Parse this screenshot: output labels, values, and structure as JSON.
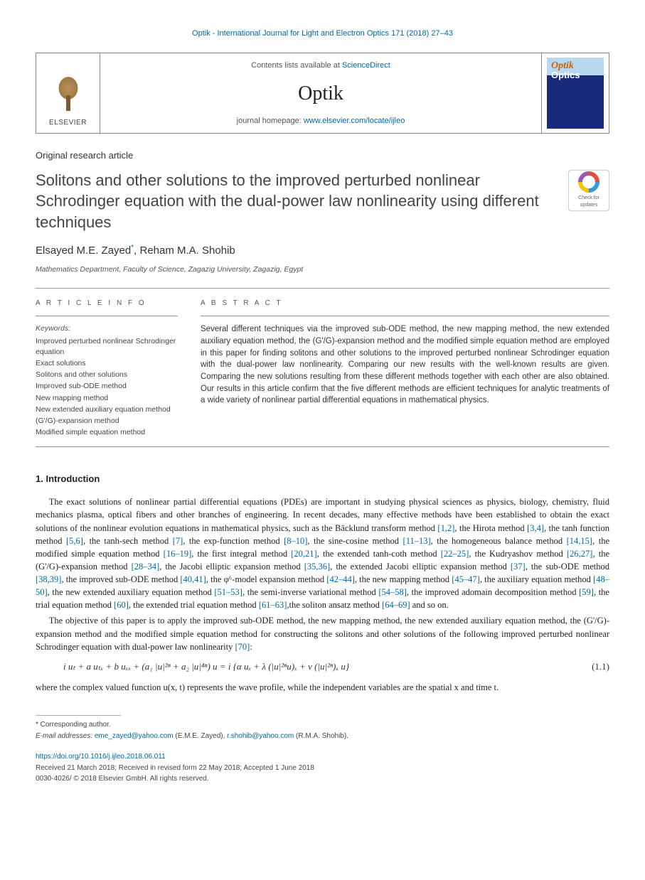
{
  "running_head": {
    "text": "Optik - International Journal for Light and Electron Optics 171 (2018) 27–43",
    "color": "#0066aa"
  },
  "header_box": {
    "publisher": "ELSEVIER",
    "contents_prefix": "Contents lists available at ",
    "contents_link": "ScienceDirect",
    "journal_name": "Optik",
    "homepage_prefix": "journal homepage: ",
    "homepage_url": "www.elsevier.com/locate/ijleo",
    "cover_colors": {
      "top": "#b8d8f0",
      "bottom": "#1a2a7a",
      "title1": "#d06000",
      "title2": "#ffffff"
    }
  },
  "article_type": "Original research article",
  "title": "Solitons and other solutions to the improved perturbed nonlinear Schrodinger equation with the dual-power law nonlinearity using different techniques",
  "crossmark": {
    "line1": "Check for",
    "line2": "updates"
  },
  "authors": {
    "a1": "Elsayed M.E. Zayed",
    "a1_marker": "*",
    "sep": ", ",
    "a2": "Reham M.A. Shohib"
  },
  "affiliation": "Mathematics Department, Faculty of Science, Zagazig University, Zagazig, Egypt",
  "article_info": {
    "heading": "A R T I C L E  I N F O",
    "keywords_label": "Keywords:",
    "keywords": [
      "Improved perturbed nonlinear Schrodinger equation",
      "Exact solutions",
      "Solitons and other solutions",
      "Improved sub-ODE method",
      "New mapping method",
      "New extended auxiliary equation method",
      "(G'/G)-expansion method",
      "Modified simple equation method"
    ]
  },
  "abstract": {
    "heading": "A B S T R A C T",
    "text": "Several different techniques via the improved sub-ODE method, the new mapping method, the new extended auxiliary equation method, the (G'/G)-expansion method and the modified simple equation method are employed in this paper for finding solitons and other solutions to the improved perturbed nonlinear Schrodinger equation with the dual-power law nonlinearity. Comparing our new results with the well-known results are given. Comparing the new solutions resulting from these different methods together with each other are also obtained. Our results in this article confirm that the five different methods are efficient techniques for analytic treatments of a wide variety of nonlinear partial differential equations in mathematical physics."
  },
  "section1": {
    "heading": "1. Introduction",
    "para1_parts": [
      "The exact solutions of nonlinear partial differential equations (PDEs) are important in studying physical sciences as physics, biology, chemistry, fluid mechanics plasma, optical fibers and other branches of engineering. In recent decades, many effective methods have been established to obtain the exact solutions of the nonlinear evolution equations in mathematical physics, such as the Bäcklund transform method ",
      "[1,2]",
      ", the Hirota method ",
      "[3,4]",
      ", the tanh function method ",
      "[5,6]",
      ", the tanh-sech method ",
      "[7]",
      ", the exp-function method ",
      "[8–10]",
      ", the sine-cosine method ",
      "[11–13]",
      ", the homogeneous balance method ",
      "[14,15]",
      ", the modified simple equation method ",
      "[16–19]",
      ", the first integral method ",
      "[20,21]",
      ", the extended tanh-coth method ",
      "[22–25]",
      ", the Kudryashov method ",
      "[26,27]",
      ", the (G'/G)-expansion method ",
      "[28–34]",
      ", the Jacobi elliptic expansion method ",
      "[35,36]",
      ", the extended Jacobi elliptic expansion method ",
      "[37]",
      ", the sub-ODE method ",
      "[38,39]",
      ", the improved sub-ODE method ",
      "[40,41]",
      ", the φ⁶-model expansion method ",
      "[42–44]",
      ", the new mapping method ",
      "[45–47]",
      ", the auxiliary equation method ",
      "[48–50]",
      ", the new extended auxiliary equation method ",
      "[51–53]",
      ", the semi-inverse variational method ",
      "[54–58]",
      ", the improved adomain decomposition method ",
      "[59]",
      ", the trial equation method ",
      "[60]",
      ", the extended trial equation method ",
      "[61–63]",
      ",the soliton ansatz method ",
      "[64–69]",
      " and so on."
    ],
    "para2_parts": [
      "The objective of this paper is to apply the improved sub-ODE method, the new mapping method, the new extended auxiliary equation method, the (G'/G)-expansion method and the modified simple equation method for constructing the solitons and other solutions of the following improved perturbed nonlinear Schrodinger equation with dual-power law nonlinearity ",
      "[70]",
      ":"
    ],
    "equation": {
      "body": "i uₜ + a uₜₓ + b uₓₓ + (a₁ |u|²ⁿ + a₂ |u|⁴ⁿ) u = i {α uₓ + λ (|u|²ⁿu)ₓ + ν (|u|²ⁿ)ₓ u}",
      "num": "(1.1)"
    },
    "para3": "where the complex valued function u(x, t) represents the wave profile, while the independent variables are the spatial x and time t."
  },
  "footnotes": {
    "corr_label": "* Corresponding author.",
    "email_label": "E-mail addresses: ",
    "email1": "eme_zayed@yahoo.com",
    "email1_who": " (E.M.E. Zayed), ",
    "email2": "r.shohib@yahoo.com",
    "email2_who": " (R.M.A. Shohib)."
  },
  "doi": {
    "url": "https://doi.org/10.1016/j.ijleo.2018.06.011",
    "history": "Received 21 March 2018; Received in revised form 22 May 2018; Accepted 1 June 2018",
    "copyright": "0030-4026/ © 2018 Elsevier GmbH. All rights reserved."
  },
  "colors": {
    "link": "#0066aa",
    "body_text": "#333333",
    "rule": "#999999"
  }
}
